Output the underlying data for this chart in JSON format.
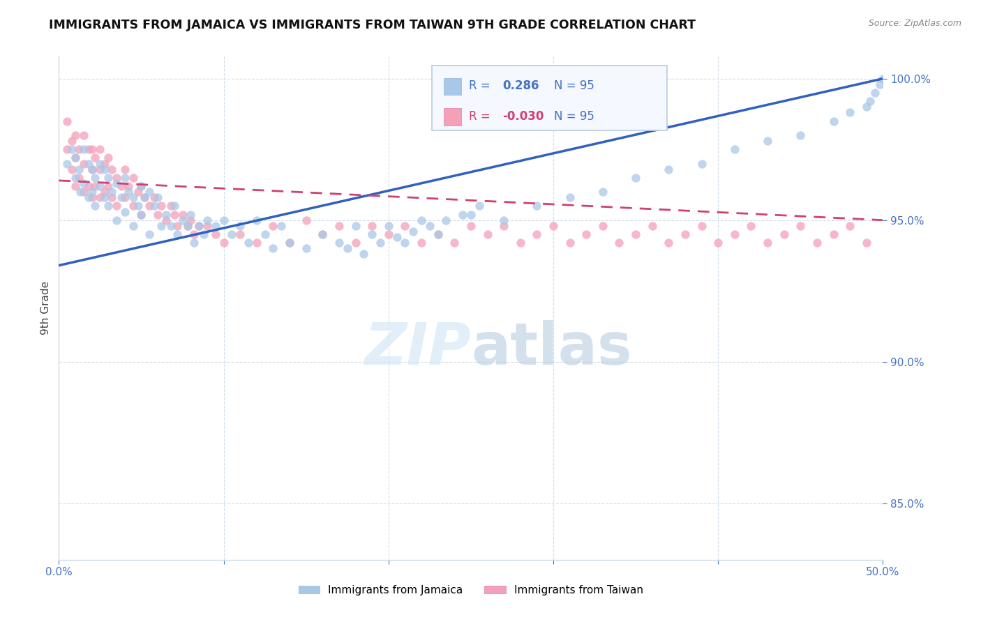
{
  "title": "IMMIGRANTS FROM JAMAICA VS IMMIGRANTS FROM TAIWAN 9TH GRADE CORRELATION CHART",
  "source_text": "Source: ZipAtlas.com",
  "ylabel": "9th Grade",
  "xlim": [
    0.0,
    0.5
  ],
  "ylim": [
    0.83,
    1.008
  ],
  "ytick_values": [
    0.85,
    0.9,
    0.95,
    1.0
  ],
  "ytick_labels": [
    "85.0%",
    "90.0%",
    "95.0%",
    "100.0%"
  ],
  "jamaica_R": 0.286,
  "taiwan_R": -0.03,
  "N": 95,
  "jamaica_color": "#a8c8e8",
  "taiwan_color": "#f4a0b8",
  "jamaica_line_color": "#3060c0",
  "taiwan_line_color": "#d04070",
  "axis_color": "#4472c4",
  "grid_color": "#d0dce8",
  "jamaica_scatter_x": [
    0.005,
    0.008,
    0.01,
    0.01,
    0.012,
    0.013,
    0.015,
    0.015,
    0.018,
    0.018,
    0.02,
    0.02,
    0.022,
    0.022,
    0.025,
    0.025,
    0.028,
    0.028,
    0.03,
    0.03,
    0.032,
    0.035,
    0.035,
    0.038,
    0.04,
    0.04,
    0.042,
    0.045,
    0.045,
    0.048,
    0.05,
    0.05,
    0.052,
    0.055,
    0.055,
    0.058,
    0.06,
    0.062,
    0.065,
    0.068,
    0.07,
    0.072,
    0.075,
    0.078,
    0.08,
    0.082,
    0.085,
    0.088,
    0.09,
    0.095,
    0.1,
    0.105,
    0.11,
    0.115,
    0.12,
    0.125,
    0.13,
    0.135,
    0.14,
    0.15,
    0.16,
    0.17,
    0.18,
    0.19,
    0.2,
    0.21,
    0.22,
    0.23,
    0.25,
    0.27,
    0.29,
    0.31,
    0.33,
    0.35,
    0.37,
    0.39,
    0.41,
    0.43,
    0.45,
    0.47,
    0.48,
    0.49,
    0.492,
    0.495,
    0.498,
    0.5,
    0.175,
    0.185,
    0.195,
    0.205,
    0.215,
    0.225,
    0.235,
    0.245,
    0.255
  ],
  "jamaica_scatter_y": [
    0.97,
    0.975,
    0.965,
    0.972,
    0.968,
    0.96,
    0.975,
    0.963,
    0.97,
    0.958,
    0.968,
    0.96,
    0.965,
    0.955,
    0.97,
    0.962,
    0.968,
    0.958,
    0.965,
    0.955,
    0.96,
    0.963,
    0.95,
    0.958,
    0.965,
    0.953,
    0.96,
    0.958,
    0.948,
    0.955,
    0.962,
    0.952,
    0.958,
    0.96,
    0.945,
    0.955,
    0.958,
    0.948,
    0.952,
    0.948,
    0.955,
    0.945,
    0.95,
    0.948,
    0.952,
    0.942,
    0.948,
    0.945,
    0.95,
    0.948,
    0.95,
    0.945,
    0.948,
    0.942,
    0.95,
    0.945,
    0.94,
    0.948,
    0.942,
    0.94,
    0.945,
    0.942,
    0.948,
    0.945,
    0.948,
    0.942,
    0.95,
    0.945,
    0.952,
    0.95,
    0.955,
    0.958,
    0.96,
    0.965,
    0.968,
    0.97,
    0.975,
    0.978,
    0.98,
    0.985,
    0.988,
    0.99,
    0.992,
    0.995,
    0.998,
    1.0,
    0.94,
    0.938,
    0.942,
    0.944,
    0.946,
    0.948,
    0.95,
    0.952,
    0.955
  ],
  "taiwan_scatter_x": [
    0.005,
    0.005,
    0.008,
    0.008,
    0.01,
    0.01,
    0.01,
    0.012,
    0.012,
    0.015,
    0.015,
    0.015,
    0.018,
    0.018,
    0.02,
    0.02,
    0.02,
    0.022,
    0.022,
    0.025,
    0.025,
    0.025,
    0.028,
    0.028,
    0.03,
    0.03,
    0.032,
    0.032,
    0.035,
    0.035,
    0.038,
    0.04,
    0.04,
    0.042,
    0.045,
    0.045,
    0.048,
    0.05,
    0.05,
    0.052,
    0.055,
    0.058,
    0.06,
    0.062,
    0.065,
    0.068,
    0.07,
    0.072,
    0.075,
    0.078,
    0.08,
    0.082,
    0.085,
    0.09,
    0.095,
    0.1,
    0.11,
    0.12,
    0.13,
    0.14,
    0.15,
    0.16,
    0.17,
    0.18,
    0.19,
    0.2,
    0.21,
    0.22,
    0.23,
    0.24,
    0.25,
    0.26,
    0.27,
    0.28,
    0.29,
    0.3,
    0.31,
    0.32,
    0.33,
    0.34,
    0.35,
    0.36,
    0.37,
    0.38,
    0.39,
    0.4,
    0.41,
    0.42,
    0.43,
    0.44,
    0.45,
    0.46,
    0.47,
    0.48,
    0.49
  ],
  "taiwan_scatter_y": [
    0.985,
    0.975,
    0.978,
    0.968,
    0.98,
    0.972,
    0.962,
    0.975,
    0.965,
    0.98,
    0.97,
    0.96,
    0.975,
    0.962,
    0.975,
    0.968,
    0.958,
    0.972,
    0.962,
    0.975,
    0.968,
    0.958,
    0.97,
    0.96,
    0.972,
    0.962,
    0.968,
    0.958,
    0.965,
    0.955,
    0.962,
    0.968,
    0.958,
    0.962,
    0.965,
    0.955,
    0.96,
    0.962,
    0.952,
    0.958,
    0.955,
    0.958,
    0.952,
    0.955,
    0.95,
    0.955,
    0.952,
    0.948,
    0.952,
    0.948,
    0.95,
    0.945,
    0.948,
    0.948,
    0.945,
    0.942,
    0.945,
    0.942,
    0.948,
    0.942,
    0.95,
    0.945,
    0.948,
    0.942,
    0.948,
    0.945,
    0.948,
    0.942,
    0.945,
    0.942,
    0.948,
    0.945,
    0.948,
    0.942,
    0.945,
    0.948,
    0.942,
    0.945,
    0.948,
    0.942,
    0.945,
    0.948,
    0.942,
    0.945,
    0.948,
    0.942,
    0.945,
    0.948,
    0.942,
    0.945,
    0.948,
    0.942,
    0.945,
    0.948,
    0.942
  ]
}
